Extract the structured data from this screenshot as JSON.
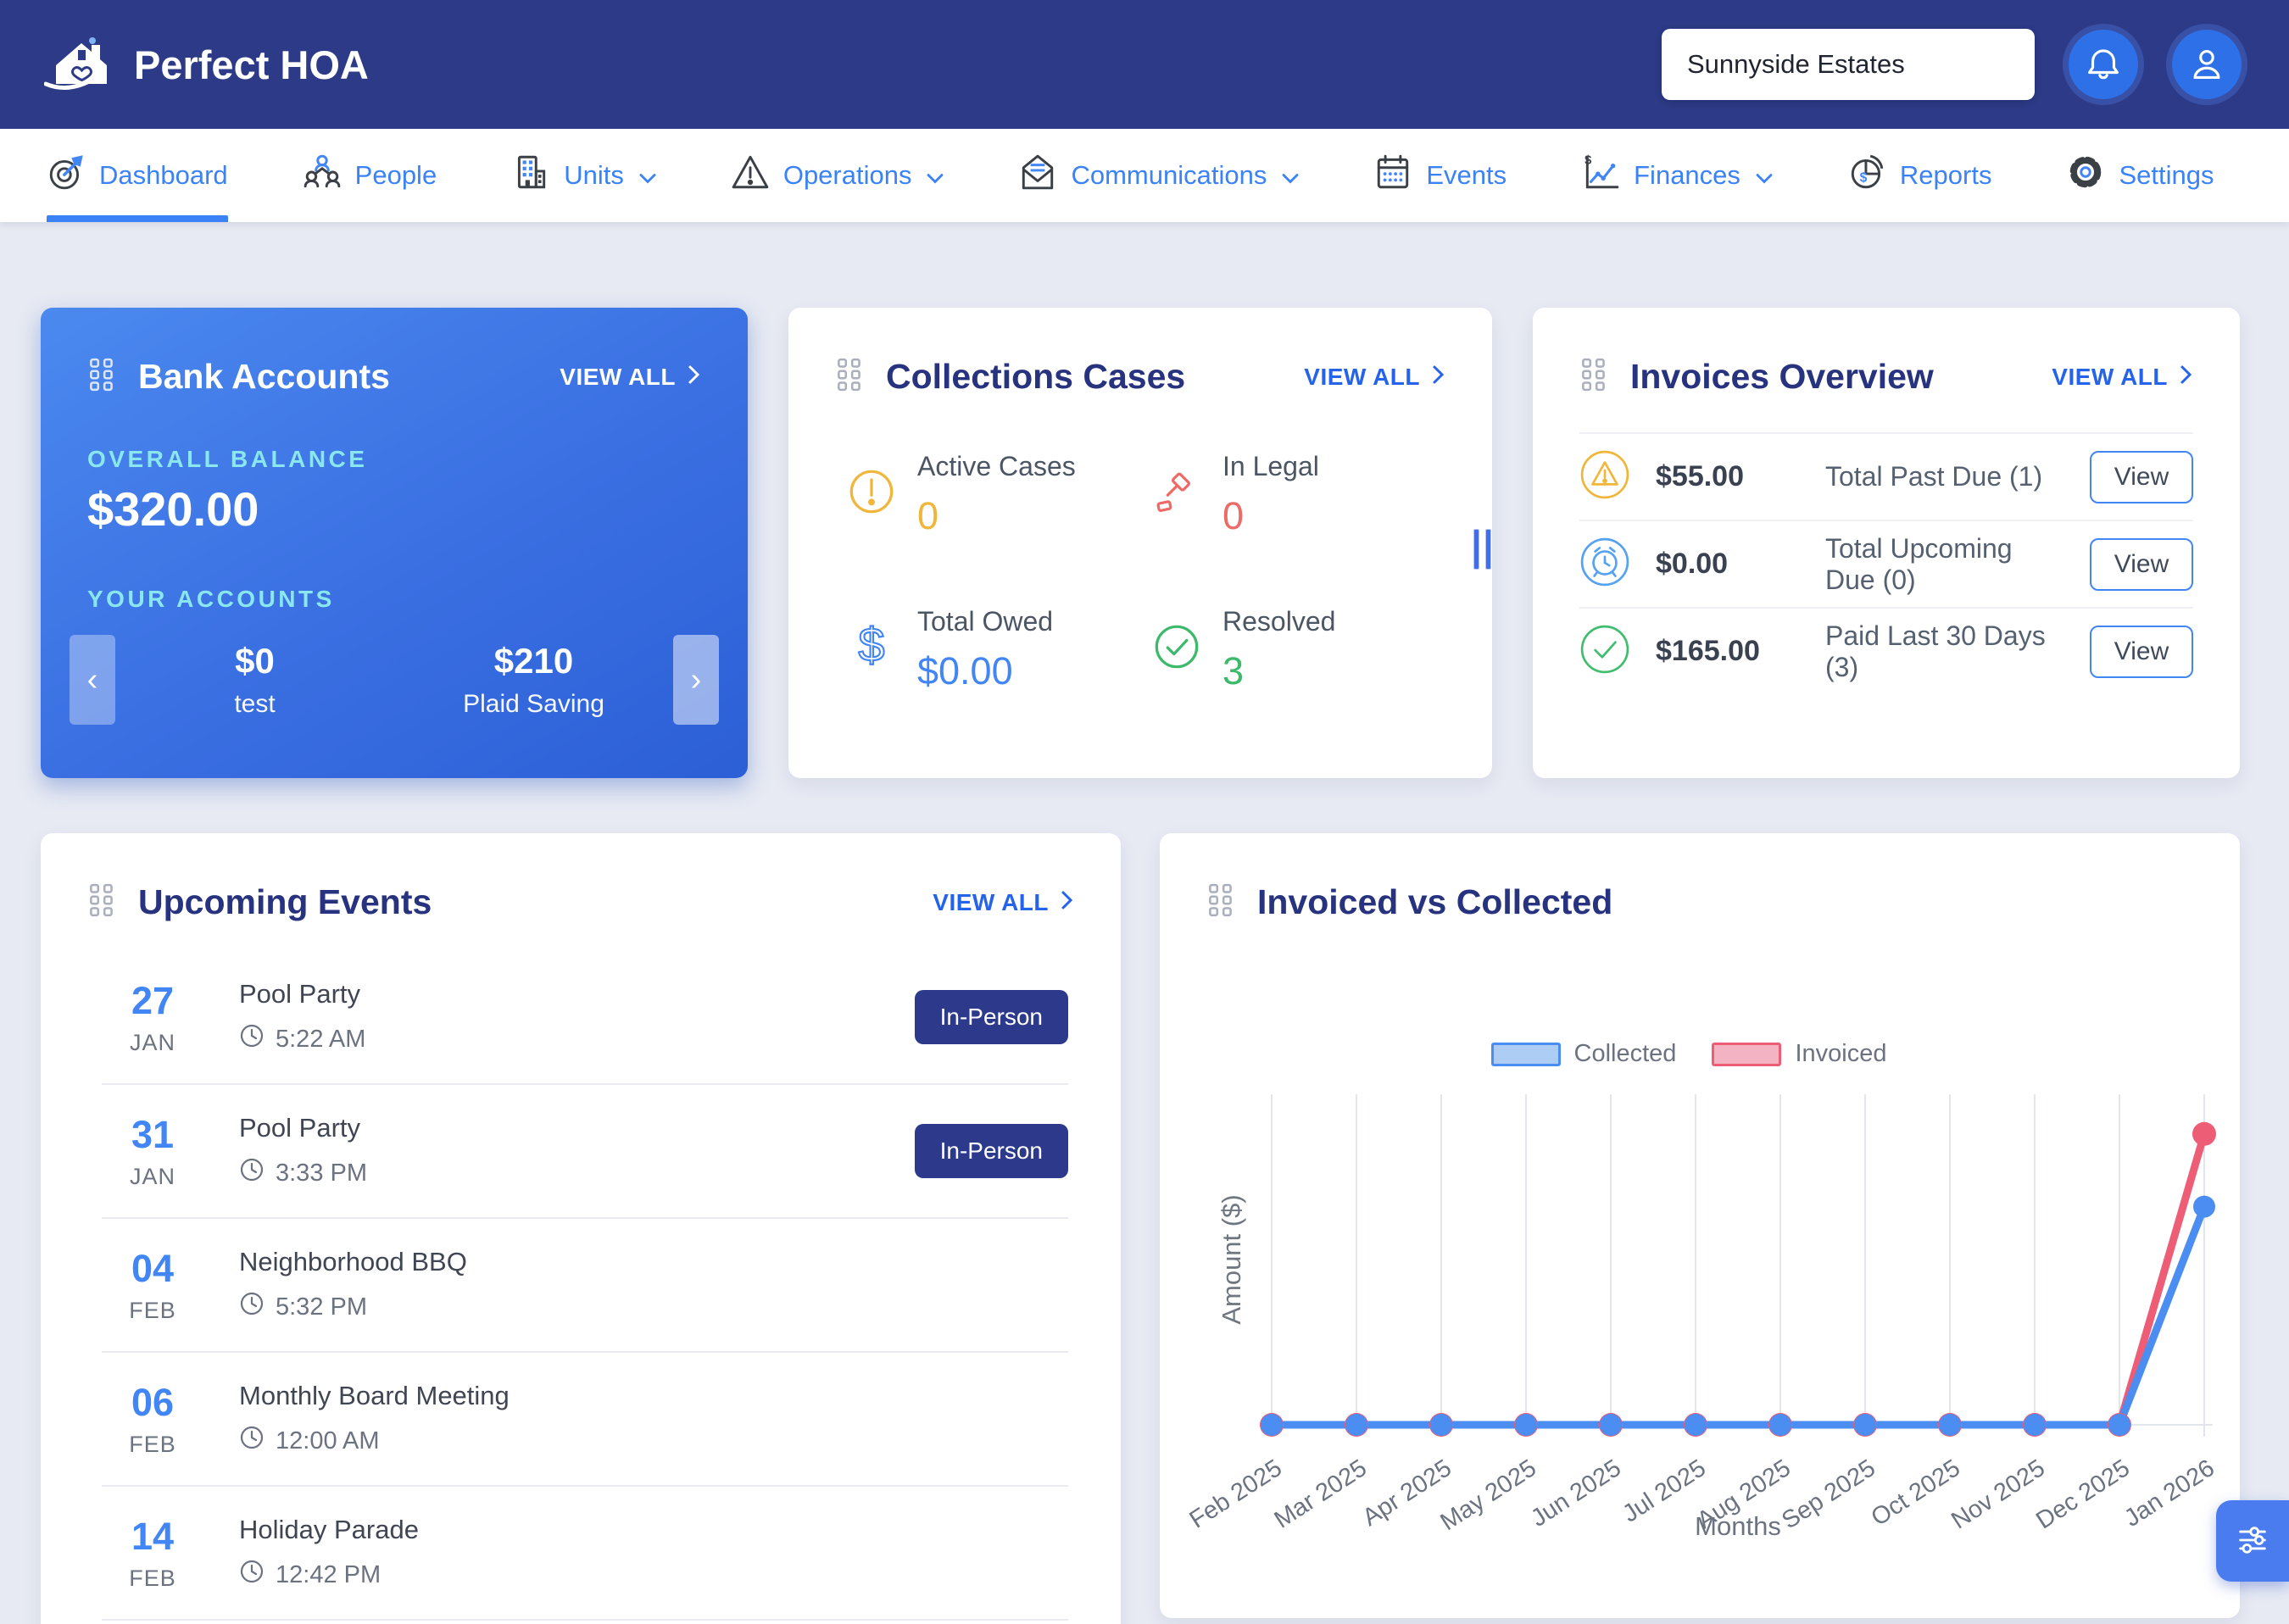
{
  "header": {
    "app_name": "Perfect HOA",
    "search_value": "Sunnyside Estates"
  },
  "nav": {
    "items": [
      {
        "label": "Dashboard",
        "active": true,
        "dropdown": false
      },
      {
        "label": "People",
        "active": false,
        "dropdown": false
      },
      {
        "label": "Units",
        "active": false,
        "dropdown": true
      },
      {
        "label": "Operations",
        "active": false,
        "dropdown": true
      },
      {
        "label": "Communications",
        "active": false,
        "dropdown": true
      },
      {
        "label": "Events",
        "active": false,
        "dropdown": false
      },
      {
        "label": "Finances",
        "active": false,
        "dropdown": true
      },
      {
        "label": "Reports",
        "active": false,
        "dropdown": false
      },
      {
        "label": "Settings",
        "active": false,
        "dropdown": false
      }
    ]
  },
  "bank": {
    "title": "Bank Accounts",
    "view_all": "VIEW ALL",
    "balance_label": "OVERALL BALANCE",
    "balance": "$320.00",
    "accounts_label": "YOUR ACCOUNTS",
    "accounts": [
      {
        "amount": "$0",
        "name": "test"
      },
      {
        "amount": "$210",
        "name": "Plaid Saving"
      }
    ]
  },
  "collections": {
    "title": "Collections Cases",
    "view_all": "VIEW ALL",
    "stats": [
      {
        "label": "Active Cases",
        "value": "0",
        "color": "#f0b63a"
      },
      {
        "label": "In Legal",
        "value": "0",
        "color": "#ee6a66"
      },
      {
        "label": "Total Owed",
        "value": "$0.00",
        "color": "#4285f4"
      },
      {
        "label": "Resolved",
        "value": "3",
        "color": "#3cb96a"
      }
    ]
  },
  "invoices": {
    "title": "Invoices Overview",
    "view_all": "VIEW ALL",
    "rows": [
      {
        "amount": "$55.00",
        "label": "Total Past Due (1)",
        "button": "View",
        "icon": "warning-triangle",
        "color": "#f0b63a"
      },
      {
        "amount": "$0.00",
        "label": "Total Upcoming Due (0)",
        "button": "View",
        "icon": "alarm-clock",
        "color": "#55a2f0"
      },
      {
        "amount": "$165.00",
        "label": "Paid Last 30 Days (3)",
        "button": "View",
        "icon": "check-circle",
        "color": "#41bd6e"
      }
    ]
  },
  "events": {
    "title": "Upcoming Events",
    "view_all": "VIEW ALL",
    "items": [
      {
        "day": "27",
        "month": "JAN",
        "title": "Pool Party",
        "time": "5:22 AM",
        "badge": "In-Person"
      },
      {
        "day": "31",
        "month": "JAN",
        "title": "Pool Party",
        "time": "3:33 PM",
        "badge": "In-Person"
      },
      {
        "day": "04",
        "month": "FEB",
        "title": "Neighborhood BBQ",
        "time": "5:32 PM",
        "badge": ""
      },
      {
        "day": "06",
        "month": "FEB",
        "title": "Monthly Board Meeting",
        "time": "12:00 AM",
        "badge": ""
      },
      {
        "day": "14",
        "month": "FEB",
        "title": "Holiday Parade",
        "time": "12:42 PM",
        "badge": ""
      }
    ]
  },
  "chart": {
    "title": "Invoiced vs Collected"
  },
  "chart_data": {
    "type": "line",
    "title": "Invoiced vs Collected",
    "x": [
      "Feb 2025",
      "Mar 2025",
      "Apr 2025",
      "May 2025",
      "Jun 2025",
      "Jul 2025",
      "Aug 2025",
      "Sep 2025",
      "Oct 2025",
      "Nov 2025",
      "Dec 2025",
      "Jan 2026"
    ],
    "series": [
      {
        "name": "Collected",
        "color": "#4b8df0",
        "fill": "#aecdf5",
        "values": [
          0,
          0,
          0,
          0,
          0,
          0,
          0,
          0,
          0,
          0,
          0,
          165
        ]
      },
      {
        "name": "Invoiced",
        "color": "#ee5d76",
        "fill": "#f3b3c2",
        "values": [
          0,
          0,
          0,
          0,
          0,
          0,
          0,
          0,
          0,
          0,
          0,
          220
        ]
      }
    ],
    "xlabel": "Months",
    "ylabel": "Amount ($)",
    "ylim": [
      0,
      250
    ],
    "grid": "vertical",
    "legend_position": "top"
  },
  "colors": {
    "navbar": "#2c3a87",
    "accent": "#3b82f6",
    "card_title": "#27337f",
    "badge": "#2d3a8c"
  }
}
